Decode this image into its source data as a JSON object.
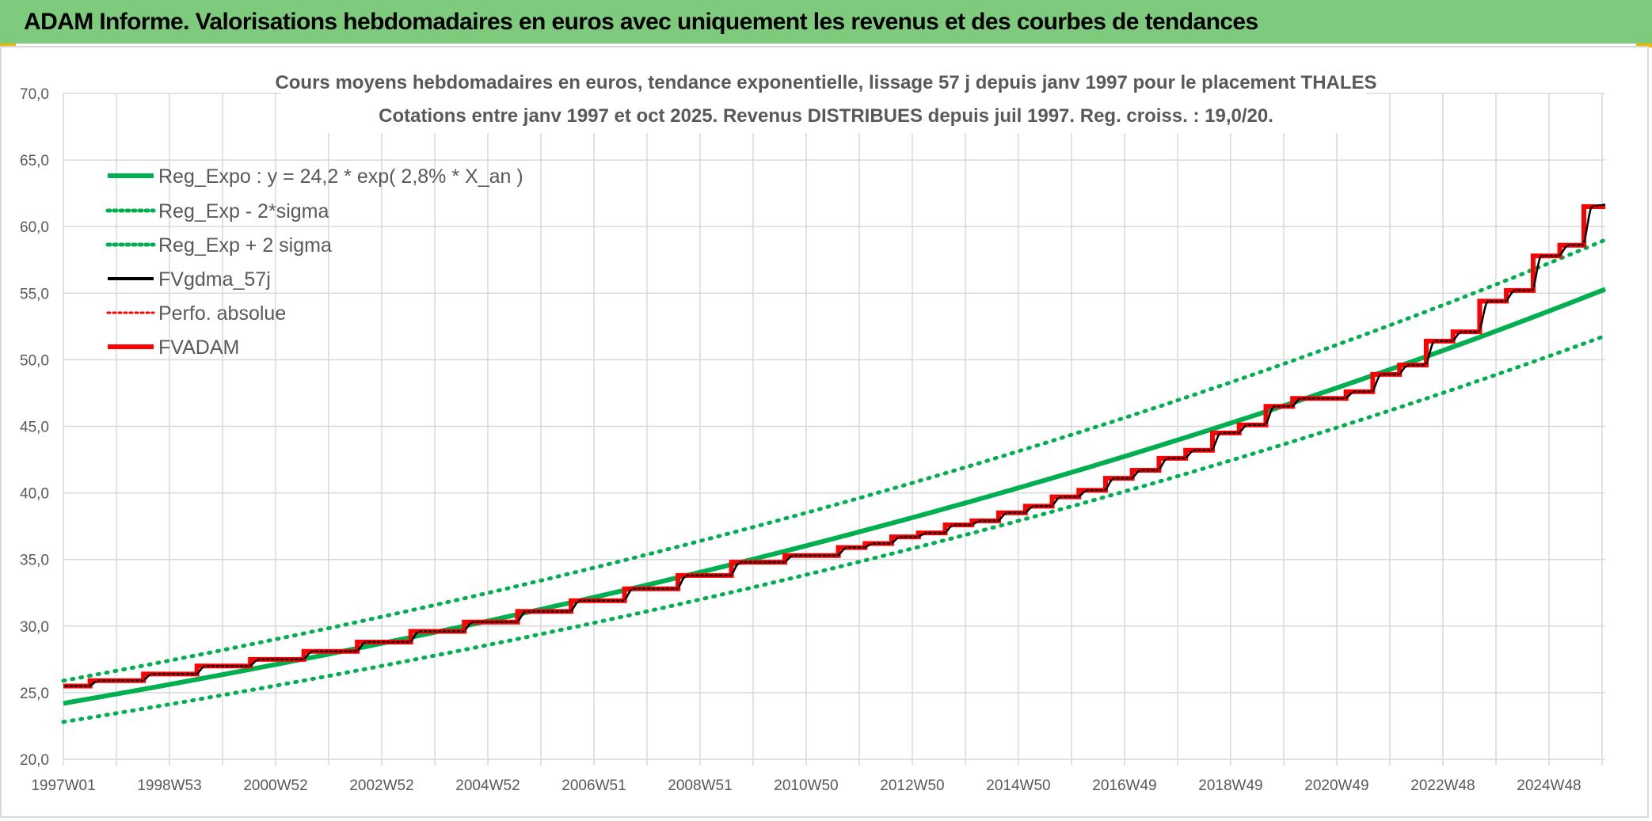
{
  "banner": {
    "title": "ADAM Informe. Valorisations hebdomadaires en euros avec uniquement les revenus et des courbes de tendances"
  },
  "colors": {
    "banner_bg": "#7ecb7e",
    "trend_green": "#00b050",
    "price_black": "#000000",
    "adam_red": "#ff0000",
    "grid": "#d9d9d9",
    "text_grey": "#595959"
  },
  "chart_data": {
    "type": "line",
    "title_line1": "Cours moyens hebdomadaires en euros, tendance exponentielle, lissage 57 j depuis janv 1997 pour le placement THALES",
    "title_line2": "Cotations entre janv 1997 et oct 2025. Revenus DISTRIBUES depuis juil 1997. Reg. croiss. : 19,0/20.",
    "x_unit": "year",
    "xlim": [
      1997.0,
      2025.85
    ],
    "ylim": [
      20,
      70
    ],
    "y_ticks": [
      "20,0",
      "25,0",
      "30,0",
      "35,0",
      "40,0",
      "45,0",
      "50,0",
      "55,0",
      "60,0",
      "65,0",
      "70,0"
    ],
    "x_tick_labels": [
      "1997W01",
      "1998W53",
      "2000W52",
      "2002W52",
      "2004W52",
      "2006W51",
      "2008W51",
      "2010W50",
      "2012W50",
      "2014W50",
      "2016W49",
      "2018W49",
      "2020W49",
      "2022W48",
      "2024W48"
    ],
    "grid": true,
    "legend_position": "top-left",
    "legend": [
      {
        "label": "Reg_Expo : y = 24,2 * exp( 2,8% *  X_an )",
        "style": "solid",
        "color": "#00b050"
      },
      {
        "label": "Reg_Exp - 2*sigma",
        "style": "dotted",
        "color": "#00b050"
      },
      {
        "label": "Reg_Exp + 2 sigma",
        "style": "dotted",
        "color": "#00b050"
      },
      {
        "label": "FVgdma_57j",
        "style": "solid",
        "color": "#000000"
      },
      {
        "label": "Perfo. absolue",
        "style": "dotted",
        "color": "#ff0000"
      },
      {
        "label": "FVADAM",
        "style": "solid-thick",
        "color": "#ff0000"
      }
    ],
    "series": [
      {
        "name": "Reg_Expo",
        "x": [
          1997.0,
          2025.85
        ],
        "y": [
          24.2,
          55.3
        ],
        "kind": "exponential"
      },
      {
        "name": "Reg_Exp - 2*sigma",
        "x": [
          1997.0,
          2025.85
        ],
        "y": [
          22.8,
          51.8
        ],
        "kind": "exponential"
      },
      {
        "name": "Reg_Exp + 2 sigma",
        "x": [
          1997.0,
          2025.85
        ],
        "y": [
          25.9,
          59.0
        ],
        "kind": "exponential"
      },
      {
        "name": "FVADAM",
        "kind": "step",
        "steps": [
          [
            1997.0,
            25.5
          ],
          [
            1997.5,
            25.9
          ],
          [
            1998.5,
            26.4
          ],
          [
            1999.5,
            27.0
          ],
          [
            2000.5,
            27.5
          ],
          [
            2001.5,
            28.1
          ],
          [
            2002.5,
            28.8
          ],
          [
            2003.5,
            29.6
          ],
          [
            2004.5,
            30.3
          ],
          [
            2005.5,
            31.1
          ],
          [
            2006.5,
            31.9
          ],
          [
            2007.5,
            32.8
          ],
          [
            2008.5,
            33.8
          ],
          [
            2009.5,
            34.8
          ],
          [
            2010.5,
            35.3
          ],
          [
            2011.5,
            35.9
          ],
          [
            2012.0,
            36.2
          ],
          [
            2012.5,
            36.7
          ],
          [
            2013.0,
            37.0
          ],
          [
            2013.5,
            37.6
          ],
          [
            2014.0,
            37.9
          ],
          [
            2014.5,
            38.5
          ],
          [
            2015.0,
            39.0
          ],
          [
            2015.5,
            39.7
          ],
          [
            2016.0,
            40.2
          ],
          [
            2016.5,
            41.1
          ],
          [
            2017.0,
            41.7
          ],
          [
            2017.5,
            42.6
          ],
          [
            2018.0,
            43.2
          ],
          [
            2018.5,
            44.5
          ],
          [
            2019.0,
            45.1
          ],
          [
            2019.5,
            46.5
          ],
          [
            2020.0,
            47.1
          ],
          [
            2020.5,
            47.1
          ],
          [
            2021.0,
            47.6
          ],
          [
            2021.5,
            48.9
          ],
          [
            2022.0,
            49.6
          ],
          [
            2022.5,
            51.4
          ],
          [
            2023.0,
            52.1
          ],
          [
            2023.5,
            54.4
          ],
          [
            2024.0,
            55.2
          ],
          [
            2024.5,
            57.8
          ],
          [
            2025.0,
            58.6
          ],
          [
            2025.45,
            61.5
          ]
        ],
        "x_end": 2025.85
      },
      {
        "name": "FVgdma_57j",
        "kind": "smoothed-step",
        "follows": "FVADAM"
      },
      {
        "name": "Perfo. absolue",
        "kind": "follows",
        "follows": "FVADAM"
      }
    ]
  }
}
